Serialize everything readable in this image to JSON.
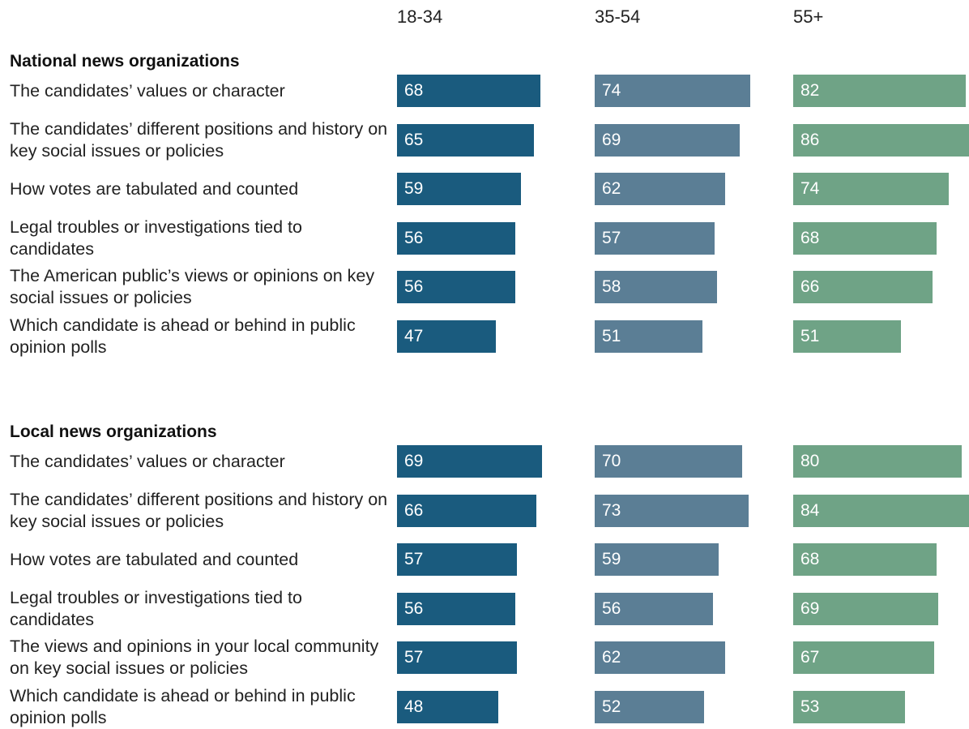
{
  "chart_data": {
    "type": "bar",
    "columns": [
      "18-34",
      "35-54",
      "55+"
    ],
    "colors": [
      "#1a5b7e",
      "#5b7e95",
      "#6fa386"
    ],
    "sections": [
      {
        "title": "National news organizations",
        "rows": [
          {
            "label": "The candidates’ values or character",
            "values": [
              68,
              74,
              82
            ]
          },
          {
            "label": "The candidates’ different positions and history on key social issues or policies",
            "values": [
              65,
              69,
              86
            ]
          },
          {
            "label": "How votes are tabulated and counted",
            "values": [
              59,
              62,
              74
            ]
          },
          {
            "label": "Legal troubles or investigations tied to candidates",
            "values": [
              56,
              57,
              68
            ]
          },
          {
            "label": "The American public’s views or opinions on key social issues or policies",
            "values": [
              56,
              58,
              66
            ]
          },
          {
            "label": "Which candidate is ahead or behind in public opinion polls",
            "values": [
              47,
              51,
              51
            ]
          }
        ]
      },
      {
        "title": "Local news organizations",
        "rows": [
          {
            "label": "The candidates’ values or character",
            "values": [
              69,
              70,
              80
            ]
          },
          {
            "label": "The candidates’ different positions and history on key social issues or policies",
            "values": [
              66,
              73,
              84
            ]
          },
          {
            "label": "How votes are tabulated and counted",
            "values": [
              57,
              59,
              68
            ]
          },
          {
            "label": "Legal troubles or investigations tied to candidates",
            "values": [
              56,
              56,
              69
            ]
          },
          {
            "label": "The views and opinions in your local community on key social issues or policies",
            "values": [
              57,
              62,
              67
            ]
          },
          {
            "label": "Which candidate is ahead or behind in public opinion polls",
            "values": [
              48,
              52,
              53
            ]
          }
        ]
      }
    ]
  }
}
